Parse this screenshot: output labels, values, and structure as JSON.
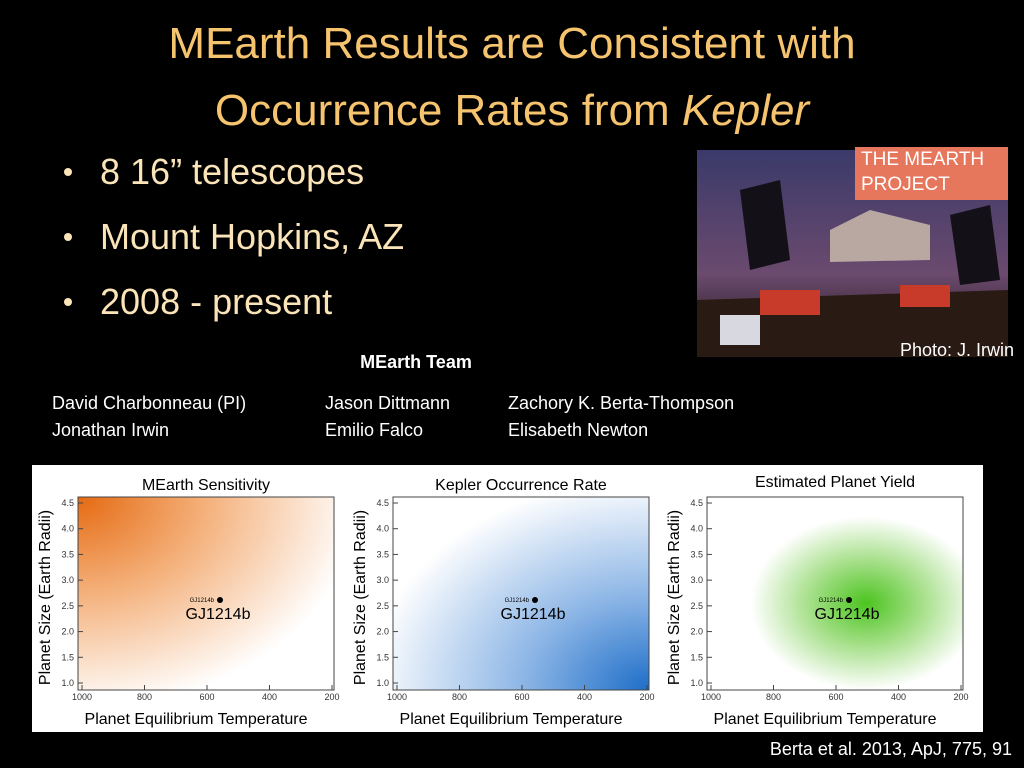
{
  "slide": {
    "title": {
      "line1": "MEarth Results are Consistent with",
      "line2": "Occurrence Rates from ",
      "line2_italic": "Kepler"
    },
    "bullets": [
      "8 16” telescopes",
      "Mount Hopkins, AZ",
      "2008 - present"
    ],
    "photo": {
      "badge": [
        "THE MEARTH",
        "PROJECT"
      ],
      "credit": "Photo: J. Irwin"
    },
    "team": {
      "heading": "MEarth Team",
      "columns": [
        [
          "David Charbonneau (PI)",
          "Jonathan Irwin"
        ],
        [
          "Jason Dittmann",
          "Emilio Falco"
        ],
        [
          "Zachory K. Berta-Thompson",
          "Elisabeth Newton"
        ]
      ]
    },
    "panels": [
      {
        "title": "MEarth Sensitivity",
        "ylabel": "Planet Size (Earth Radii)",
        "xlabel": "Planet Equilibrium Temperature",
        "xticks": [
          "1000",
          "800",
          "600",
          "400",
          "200"
        ],
        "yticks": [
          "1.0",
          "1.5",
          "2.0",
          "2.5",
          "3.0",
          "3.5",
          "4.0",
          "4.5"
        ],
        "point_small": "GJ1214b",
        "point_label": "GJ1214b"
      },
      {
        "title": "Kepler Occurrence Rate",
        "ylabel": "Planet Size (Earth Radii)",
        "xlabel": "Planet Equilibrium Temperature",
        "xticks": [
          "1000",
          "800",
          "600",
          "400",
          "200"
        ],
        "yticks": [
          "1.0",
          "1.5",
          "2.0",
          "2.5",
          "3.0",
          "3.5",
          "4.0",
          "4.5"
        ],
        "point_small": "GJ1214b",
        "point_label": "GJ1214b"
      },
      {
        "title": "Estimated Planet Yield",
        "ylabel": "Planet Size (Earth Radii)",
        "xlabel": "Planet Equilibrium Temperature",
        "xticks": [
          "1000",
          "800",
          "600",
          "400",
          "200"
        ],
        "yticks": [
          "1.0",
          "1.5",
          "2.0",
          "2.5",
          "3.0",
          "3.5",
          "4.0",
          "4.5"
        ],
        "point_small": "GJ1214b",
        "point_label": "GJ1214b"
      }
    ],
    "citation": "Berta et al. 2013, ApJ, 775, 91"
  }
}
